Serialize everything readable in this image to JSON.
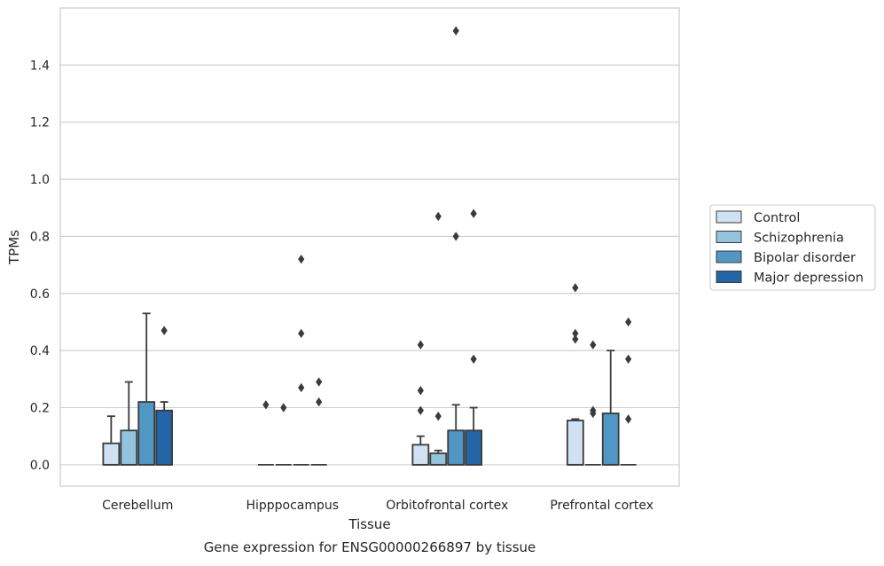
{
  "chart_data": {
    "type": "box",
    "caption": "Gene expression for ENSG00000266897 by tissue",
    "xlabel": "Tissue",
    "ylabel": "TPMs",
    "ylim": [
      -0.075,
      1.6
    ],
    "yticks": [
      0.0,
      0.2,
      0.4,
      0.6,
      0.8,
      1.0,
      1.2,
      1.4
    ],
    "ytick_labels": [
      "0.0",
      "0.2",
      "0.4",
      "0.6",
      "0.8",
      "1.0",
      "1.2",
      "1.4"
    ],
    "grid": "horizontal",
    "legend_position": "right",
    "categories": [
      "Cerebellum",
      "Hipppocampus",
      "Orbitofrontal cortex",
      "Prefrontal cortex"
    ],
    "series": [
      {
        "name": "Control",
        "color": "#cfe1f2",
        "boxes": [
          {
            "q1": 0.0,
            "median": 0.0,
            "q3": 0.075,
            "whisker_low": 0.0,
            "whisker_high": 0.17,
            "outliers": []
          },
          {
            "q1": 0.0,
            "median": 0.0,
            "q3": 0.0,
            "whisker_low": 0.0,
            "whisker_high": 0.0,
            "outliers": [
              0.21
            ]
          },
          {
            "q1": 0.0,
            "median": 0.0,
            "q3": 0.07,
            "whisker_low": 0.0,
            "whisker_high": 0.1,
            "outliers": [
              0.42,
              0.26,
              0.19
            ]
          },
          {
            "q1": 0.0,
            "median": 0.0,
            "q3": 0.155,
            "whisker_low": 0.0,
            "whisker_high": 0.16,
            "outliers": [
              0.62,
              0.46,
              0.44
            ]
          }
        ]
      },
      {
        "name": "Schizophrenia",
        "color": "#93c4de",
        "boxes": [
          {
            "q1": 0.0,
            "median": 0.0,
            "q3": 0.12,
            "whisker_low": 0.0,
            "whisker_high": 0.29,
            "outliers": []
          },
          {
            "q1": 0.0,
            "median": 0.0,
            "q3": 0.0,
            "whisker_low": 0.0,
            "whisker_high": 0.0,
            "outliers": [
              0.2
            ]
          },
          {
            "q1": 0.0,
            "median": 0.0,
            "q3": 0.04,
            "whisker_low": 0.0,
            "whisker_high": 0.05,
            "outliers": [
              0.87,
              0.17
            ]
          },
          {
            "q1": 0.0,
            "median": 0.0,
            "q3": 0.0,
            "whisker_low": 0.0,
            "whisker_high": 0.0,
            "outliers": [
              0.42,
              0.19,
              0.18
            ]
          }
        ]
      },
      {
        "name": "Bipolar disorder",
        "color": "#5097c6",
        "boxes": [
          {
            "q1": 0.0,
            "median": 0.0,
            "q3": 0.22,
            "whisker_low": 0.0,
            "whisker_high": 0.53,
            "outliers": []
          },
          {
            "q1": 0.0,
            "median": 0.0,
            "q3": 0.0,
            "whisker_low": 0.0,
            "whisker_high": 0.0,
            "outliers": [
              0.72,
              0.46,
              0.27
            ]
          },
          {
            "q1": 0.0,
            "median": 0.0,
            "q3": 0.12,
            "whisker_low": 0.0,
            "whisker_high": 0.21,
            "outliers": [
              1.52,
              0.8
            ]
          },
          {
            "q1": 0.0,
            "median": 0.0,
            "q3": 0.18,
            "whisker_low": 0.0,
            "whisker_high": 0.4,
            "outliers": []
          }
        ]
      },
      {
        "name": "Major depression",
        "color": "#2465a8",
        "boxes": [
          {
            "q1": 0.0,
            "median": 0.0,
            "q3": 0.19,
            "whisker_low": 0.0,
            "whisker_high": 0.22,
            "outliers": [
              0.47
            ]
          },
          {
            "q1": 0.0,
            "median": 0.0,
            "q3": 0.0,
            "whisker_low": 0.0,
            "whisker_high": 0.0,
            "outliers": [
              0.29,
              0.22
            ]
          },
          {
            "q1": 0.0,
            "median": 0.0,
            "q3": 0.12,
            "whisker_low": 0.0,
            "whisker_high": 0.2,
            "outliers": [
              0.88,
              0.37
            ]
          },
          {
            "q1": 0.0,
            "median": 0.0,
            "q3": 0.0,
            "whisker_low": 0.0,
            "whisker_high": 0.0,
            "outliers": [
              0.5,
              0.37,
              0.16
            ]
          }
        ]
      }
    ]
  }
}
